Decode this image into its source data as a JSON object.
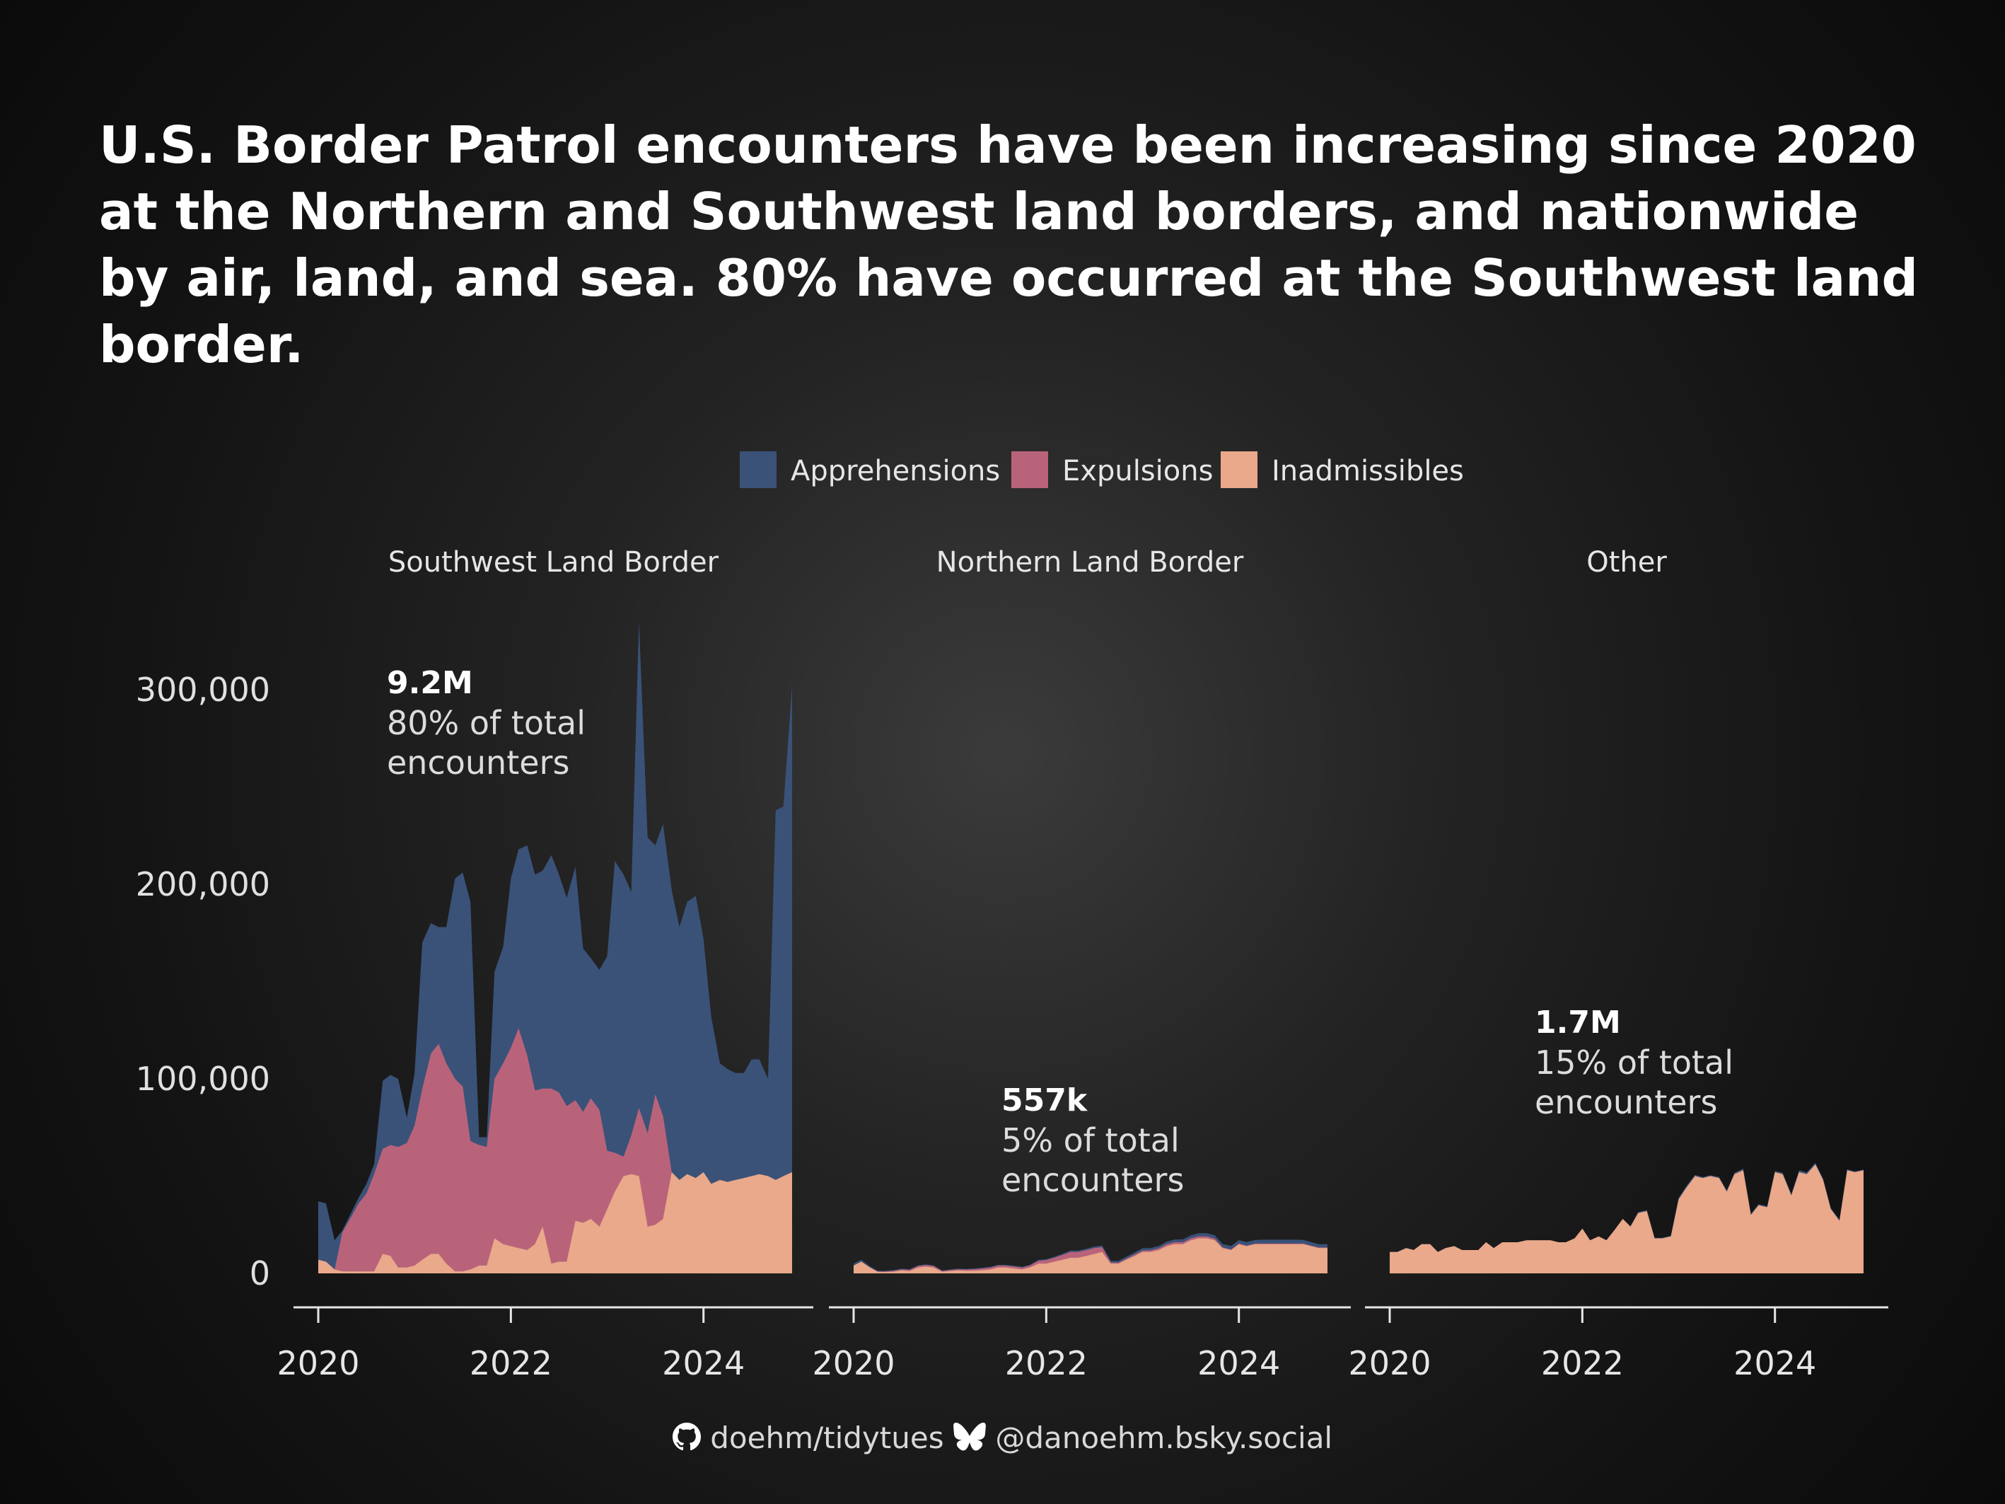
{
  "title": "U.S. Border Patrol encounters have been increasing since 2020 at the Northern and Southwest land borders, and nationwide by air, land, and sea. 80% have occurred at the Southwest land border.",
  "footer": {
    "github": "doehm/tidytues",
    "bluesky": "@danoehm.bsky.social",
    "github_icon": "github-icon",
    "bluesky_icon": "butterfly-icon"
  },
  "colors": {
    "Apprehensions": "#3a5278",
    "Expulsions": "#b9637a",
    "Inadmissibles": "#e9a98a",
    "background": "#1c1c1c",
    "text": "#ffffff"
  },
  "chart_data": {
    "type": "area",
    "stacked": true,
    "legend": {
      "position": "top",
      "items": [
        "Apprehensions",
        "Expulsions",
        "Inadmissibles"
      ]
    },
    "ylim": [
      0,
      340000
    ],
    "yticks": [
      0,
      100000,
      200000,
      300000
    ],
    "ytick_labels": [
      "0",
      "100,000",
      "200,000",
      "300,000"
    ],
    "xticks": [
      2020,
      2022,
      2024
    ],
    "xtick_labels": [
      "2020",
      "2022",
      "2024"
    ],
    "xlim": [
      2019.85,
      2024.95
    ],
    "grid": false,
    "panels": [
      {
        "name": "Southwest Land Border",
        "annotation": {
          "value": "9.2M",
          "line1": "80% of total",
          "line2": "encounters"
        },
        "x": [
          2020.0,
          2020.08,
          2020.17,
          2020.25,
          2020.33,
          2020.42,
          2020.5,
          2020.58,
          2020.67,
          2020.75,
          2020.83,
          2020.92,
          2021.0,
          2021.08,
          2021.17,
          2021.25,
          2021.33,
          2021.42,
          2021.5,
          2021.58,
          2021.67,
          2021.75,
          2021.83,
          2021.92,
          2022.0,
          2022.08,
          2022.17,
          2022.25,
          2022.33,
          2022.42,
          2022.5,
          2022.58,
          2022.67,
          2022.75,
          2022.83,
          2022.92,
          2023.0,
          2023.08,
          2023.17,
          2023.25,
          2023.33,
          2023.42,
          2023.5,
          2023.58,
          2023.67,
          2023.75,
          2023.83,
          2023.92,
          2024.0,
          2024.08,
          2024.17,
          2024.25,
          2024.33,
          2024.42,
          2024.5,
          2024.58,
          2024.67,
          2024.75,
          2024.83,
          2024.92
        ],
        "series": [
          {
            "name": "Inadmissibles",
            "values": [
              7000,
              6000,
              2000,
              1000,
              1000,
              1000,
              1000,
              1000,
              10000,
              9000,
              3000,
              3000,
              4000,
              7000,
              10000,
              10000,
              5000,
              1000,
              1000,
              2000,
              4000,
              4000,
              18000,
              15000,
              14000,
              13000,
              12000,
              15000,
              24000,
              5000,
              6000,
              6000,
              27000,
              26000,
              28000,
              24000,
              33000,
              42000,
              50000,
              51000,
              50000,
              24000,
              25000,
              28000,
              52000,
              48000,
              51000,
              49000,
              52000,
              46000,
              48000,
              47000,
              48000,
              49000,
              50000,
              51000,
              50000,
              48000,
              50000,
              52000
            ]
          },
          {
            "name": "Expulsions",
            "values": [
              0,
              0,
              0,
              20000,
              27000,
              35000,
              40000,
              50000,
              54000,
              57000,
              62000,
              64000,
              72000,
              88000,
              103000,
              108000,
              103000,
              99000,
              95000,
              66000,
              62000,
              61000,
              82000,
              93000,
              102000,
              113000,
              100000,
              79000,
              71000,
              90000,
              87000,
              80000,
              62000,
              57000,
              62000,
              60000,
              30000,
              20000,
              10000,
              20000,
              35000,
              48000,
              67000,
              53000,
              0,
              0,
              0,
              0,
              0,
              0,
              0,
              0,
              0,
              0,
              0,
              0,
              0,
              0,
              0,
              0
            ]
          },
          {
            "name": "Apprehensions",
            "values": [
              30000,
              30000,
              15000,
              1000,
              2000,
              3000,
              5000,
              5000,
              35000,
              36000,
              35000,
              13000,
              27000,
              75000,
              67000,
              60000,
              70000,
              103000,
              110000,
              123000,
              4000,
              5000,
              55000,
              60000,
              87000,
              92000,
              108000,
              111000,
              112000,
              120000,
              112000,
              107000,
              120000,
              84000,
              72000,
              72000,
              100000,
              150000,
              145000,
              125000,
              250000,
              152000,
              128000,
              150000,
              145000,
              130000,
              140000,
              145000,
              120000,
              86000,
              60000,
              58000,
              55000,
              54000,
              60000,
              59000,
              50000,
              190000,
              190000,
              250000
            ]
          }
        ]
      },
      {
        "name": "Northern Land Border",
        "annotation": {
          "value": "557k",
          "line1": "5% of total",
          "line2": "encounters"
        },
        "x": [
          2020.0,
          2020.08,
          2020.17,
          2020.25,
          2020.33,
          2020.42,
          2020.5,
          2020.58,
          2020.67,
          2020.75,
          2020.83,
          2020.92,
          2021.0,
          2021.08,
          2021.17,
          2021.25,
          2021.33,
          2021.42,
          2021.5,
          2021.58,
          2021.67,
          2021.75,
          2021.83,
          2021.92,
          2022.0,
          2022.08,
          2022.17,
          2022.25,
          2022.33,
          2022.42,
          2022.5,
          2022.58,
          2022.67,
          2022.75,
          2022.83,
          2022.92,
          2023.0,
          2023.08,
          2023.17,
          2023.25,
          2023.33,
          2023.42,
          2023.5,
          2023.58,
          2023.67,
          2023.75,
          2023.83,
          2023.92,
          2024.0,
          2024.08,
          2024.17,
          2024.25,
          2024.33,
          2024.42,
          2024.5,
          2024.58,
          2024.67,
          2024.75,
          2024.83,
          2024.92
        ],
        "series": [
          {
            "name": "Inadmissibles",
            "values": [
              4000,
              6000,
              3000,
              800,
              600,
              900,
              1500,
              1200,
              3000,
              3500,
              3000,
              800,
              1200,
              1500,
              1300,
              1400,
              1600,
              2000,
              3000,
              3000,
              2500,
              2000,
              3000,
              5000,
              5000,
              6000,
              7000,
              8000,
              8000,
              9000,
              10000,
              11000,
              5000,
              5000,
              7000,
              9000,
              11000,
              11000,
              12000,
              14000,
              15000,
              15000,
              17000,
              18000,
              18000,
              17000,
              13000,
              12000,
              15000,
              14000,
              15000,
              15000,
              15000,
              15000,
              15000,
              15000,
              15000,
              14000,
              13000,
              13000
            ]
          },
          {
            "name": "Expulsions",
            "values": [
              0,
              0,
              0,
              200,
              400,
              500,
              600,
              600,
              800,
              800,
              800,
              400,
              500,
              600,
              700,
              800,
              900,
              1000,
              1000,
              1000,
              1000,
              1000,
              1000,
              1500,
              1800,
              2000,
              2500,
              3000,
              3000,
              3000,
              3000,
              2500,
              600,
              500,
              500,
              700,
              700,
              800,
              900,
              1000,
              1000,
              1000,
              1000,
              1000,
              1000,
              900,
              400,
              300,
              300,
              300,
              300,
              300,
              300,
              300,
              300,
              300,
              300,
              300,
              300,
              300
            ]
          },
          {
            "name": "Apprehensions",
            "values": [
              1000,
              1000,
              600,
              300,
              300,
              300,
              300,
              300,
              300,
              300,
              300,
              300,
              300,
              300,
              300,
              300,
              300,
              400,
              400,
              400,
              400,
              400,
              400,
              500,
              500,
              500,
              600,
              700,
              700,
              700,
              800,
              800,
              900,
              900,
              1000,
              1100,
              1200,
              1200,
              1200,
              1300,
              1400,
              1500,
              1500,
              1600,
              1600,
              1700,
              1700,
              1800,
              1800,
              1800,
              1900,
              2000,
              2000,
              2000,
              2000,
              2000,
              1900,
              1800,
              1700,
              1700
            ]
          }
        ]
      },
      {
        "name": "Other",
        "annotation": {
          "value": "1.7M",
          "line1": "15% of total",
          "line2": "encounters"
        },
        "x": [
          2020.0,
          2020.08,
          2020.17,
          2020.25,
          2020.33,
          2020.42,
          2020.5,
          2020.58,
          2020.67,
          2020.75,
          2020.83,
          2020.92,
          2021.0,
          2021.08,
          2021.17,
          2021.25,
          2021.33,
          2021.42,
          2021.5,
          2021.58,
          2021.67,
          2021.75,
          2021.83,
          2021.92,
          2022.0,
          2022.08,
          2022.17,
          2022.25,
          2022.33,
          2022.42,
          2022.5,
          2022.58,
          2022.67,
          2022.75,
          2022.83,
          2022.92,
          2023.0,
          2023.08,
          2023.17,
          2023.25,
          2023.33,
          2023.42,
          2023.5,
          2023.58,
          2023.67,
          2023.75,
          2023.83,
          2023.92,
          2024.0,
          2024.08,
          2024.17,
          2024.25,
          2024.33,
          2024.42,
          2024.5,
          2024.58,
          2024.67,
          2024.75,
          2024.83,
          2024.92
        ],
        "series": [
          {
            "name": "Inadmissibles",
            "values": [
              11000,
              11000,
              13000,
              12000,
              15000,
              15000,
              11000,
              13000,
              14000,
              12000,
              12000,
              12000,
              16000,
              13000,
              16000,
              16000,
              16000,
              17000,
              17000,
              17000,
              17000,
              16000,
              16000,
              18000,
              23000,
              17000,
              19000,
              17000,
              22000,
              28000,
              24000,
              31000,
              32000,
              18000,
              18000,
              19000,
              38000,
              44000,
              50000,
              49000,
              50000,
              49000,
              42000,
              51000,
              53000,
              30000,
              35000,
              34000,
              52000,
              51000,
              40000,
              52000,
              51000,
              56000,
              48000,
              33000,
              27000,
              53000,
              52000,
              53000
            ]
          },
          {
            "name": "Expulsions",
            "values": [
              0,
              0,
              0,
              0,
              0,
              0,
              0,
              0,
              0,
              0,
              0,
              0,
              0,
              0,
              0,
              0,
              0,
              0,
              0,
              0,
              0,
              0,
              0,
              0,
              0,
              0,
              0,
              0,
              0,
              0,
              0,
              0,
              0,
              0,
              0,
              0,
              0,
              0,
              0,
              0,
              0,
              0,
              0,
              0,
              0,
              0,
              0,
              0,
              0,
              0,
              0,
              0,
              0,
              0,
              0,
              0,
              0,
              0,
              0,
              0
            ]
          },
          {
            "name": "Apprehensions",
            "values": [
              0,
              0,
              0,
              0,
              0,
              0,
              0,
              0,
              0,
              0,
              0,
              0,
              0,
              0,
              0,
              0,
              0,
              0,
              0,
              0,
              0,
              0,
              0,
              0,
              0,
              0,
              0,
              0,
              0,
              0,
              300,
              500,
              500,
              300,
              300,
              300,
              800,
              800,
              600,
              500,
              400,
              600,
              600,
              700,
              800,
              700,
              600,
              500,
              700,
              700,
              800,
              1000,
              900,
              800,
              700,
              600,
              600,
              500,
              400,
              400
            ]
          }
        ]
      }
    ]
  }
}
